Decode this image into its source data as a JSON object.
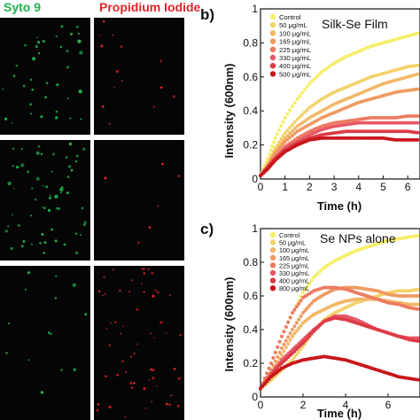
{
  "headers": {
    "syto": "Syto 9",
    "pi": "Propidium Iodide"
  },
  "colors": {
    "syto": "#22b14c",
    "pi": "#e0262a",
    "microscopy_bg": "#050505",
    "series": [
      "#f5ef6a",
      "#f3d36a",
      "#f2b867",
      "#ef9b62",
      "#ec7b62",
      "#e65866",
      "#dd3a46",
      "#c8161a"
    ]
  },
  "panels": {
    "micro": [
      {
        "row": 1,
        "green_level": "medium",
        "red_level": "low"
      },
      {
        "row": 2,
        "green_level": "high",
        "red_level": "very-low"
      },
      {
        "row": 3,
        "green_level": "low",
        "red_level": "high"
      }
    ]
  },
  "chart_data": [
    {
      "type": "scatter",
      "panel_label": "b)",
      "title": "Silk-Se Film",
      "xlabel": "Time (h)",
      "ylabel": "Intensity (600nm)",
      "xlim": [
        0,
        6.5
      ],
      "ylim": [
        0,
        1
      ],
      "xticks": [
        "0",
        "2",
        "4",
        "6"
      ],
      "xticks_minor": [
        "1",
        "3",
        "5"
      ],
      "yticks": [
        "0",
        "0.2",
        "0.4",
        "0.6",
        "0.8",
        "1"
      ],
      "legend_position": "top-left",
      "series": [
        {
          "name": "Control",
          "x": [
            0,
            0.3,
            0.6,
            1,
            1.5,
            2,
            2.5,
            3,
            3.5,
            4,
            4.5,
            5,
            5.5,
            6,
            6.5
          ],
          "y": [
            0.02,
            0.12,
            0.24,
            0.36,
            0.47,
            0.56,
            0.63,
            0.68,
            0.72,
            0.75,
            0.78,
            0.8,
            0.82,
            0.84,
            0.86
          ]
        },
        {
          "name": "50 μg/mL",
          "x": [
            0,
            0.3,
            0.6,
            1,
            1.5,
            2,
            2.5,
            3,
            3.5,
            4,
            4.5,
            5,
            5.5,
            6,
            6.5
          ],
          "y": [
            0.02,
            0.09,
            0.18,
            0.27,
            0.35,
            0.42,
            0.47,
            0.51,
            0.54,
            0.57,
            0.6,
            0.62,
            0.64,
            0.66,
            0.67
          ]
        },
        {
          "name": "100 μg/mL",
          "x": [
            0,
            0.3,
            0.6,
            1,
            1.5,
            2,
            2.5,
            3,
            3.5,
            4,
            4.5,
            5,
            5.5,
            6,
            6.5
          ],
          "y": [
            0.02,
            0.08,
            0.16,
            0.24,
            0.31,
            0.36,
            0.4,
            0.44,
            0.47,
            0.5,
            0.53,
            0.56,
            0.58,
            0.6,
            0.62
          ]
        },
        {
          "name": "165 μg/mL",
          "x": [
            0,
            0.3,
            0.6,
            1,
            1.5,
            2,
            2.5,
            3,
            3.5,
            4,
            4.5,
            5,
            5.5,
            6,
            6.5
          ],
          "y": [
            0.02,
            0.08,
            0.15,
            0.22,
            0.28,
            0.32,
            0.36,
            0.39,
            0.42,
            0.45,
            0.47,
            0.49,
            0.51,
            0.52,
            0.53
          ]
        },
        {
          "name": "225 μg/mL",
          "x": [
            0,
            0.3,
            0.6,
            1,
            1.5,
            2,
            2.5,
            3,
            3.5,
            4,
            4.5,
            5,
            5.5,
            6,
            6.5
          ],
          "y": [
            0.02,
            0.07,
            0.13,
            0.19,
            0.24,
            0.28,
            0.31,
            0.33,
            0.34,
            0.35,
            0.36,
            0.36,
            0.36,
            0.37,
            0.37
          ]
        },
        {
          "name": "330 μg/mL",
          "x": [
            0,
            0.3,
            0.6,
            1,
            1.5,
            2,
            2.5,
            3,
            3.5,
            4,
            4.5,
            5,
            5.5,
            6,
            6.5
          ],
          "y": [
            0.02,
            0.07,
            0.12,
            0.18,
            0.22,
            0.26,
            0.29,
            0.31,
            0.32,
            0.33,
            0.33,
            0.33,
            0.33,
            0.33,
            0.33
          ]
        },
        {
          "name": "400 μg/mL",
          "x": [
            0,
            0.3,
            0.6,
            1,
            1.5,
            2,
            2.5,
            3,
            3.5,
            4,
            4.5,
            5,
            5.5,
            6,
            6.5
          ],
          "y": [
            0.02,
            0.07,
            0.12,
            0.17,
            0.21,
            0.24,
            0.26,
            0.27,
            0.28,
            0.28,
            0.28,
            0.28,
            0.28,
            0.28,
            0.27
          ]
        },
        {
          "name": "500 μg/mL",
          "x": [
            0,
            0.3,
            0.6,
            1,
            1.5,
            2,
            2.5,
            3,
            3.5,
            4,
            4.5,
            5,
            5.5,
            6,
            6.5
          ],
          "y": [
            0.02,
            0.06,
            0.11,
            0.16,
            0.2,
            0.23,
            0.24,
            0.24,
            0.24,
            0.24,
            0.24,
            0.24,
            0.23,
            0.23,
            0.23
          ]
        }
      ]
    },
    {
      "type": "scatter",
      "panel_label": "c)",
      "title": "Se NPs alone",
      "xlabel": "Time (h)",
      "ylabel": "Intensity (600nm)",
      "xlim": [
        0,
        7.5
      ],
      "ylim": [
        0,
        1
      ],
      "xticks": [
        "0",
        "2",
        "4",
        "6"
      ],
      "yticks": [
        "0",
        "0.2",
        "0.4",
        "0.6",
        "0.8",
        "1"
      ],
      "legend_position": "top-left",
      "series": [
        {
          "name": "Control",
          "x": [
            0,
            0.5,
            1,
            1.5,
            2,
            2.5,
            3,
            3.5,
            4,
            4.5,
            5,
            5.5,
            6,
            6.5,
            7,
            7.5
          ],
          "y": [
            0.05,
            0.2,
            0.36,
            0.5,
            0.62,
            0.71,
            0.77,
            0.81,
            0.84,
            0.87,
            0.89,
            0.91,
            0.93,
            0.94,
            0.95,
            0.96
          ]
        },
        {
          "name": "50 μg/mL",
          "x": [
            0,
            0.5,
            1,
            1.5,
            2,
            2.5,
            3,
            3.5,
            4,
            4.5,
            5,
            5.5,
            6,
            6.5,
            7,
            7.5
          ],
          "y": [
            0.05,
            0.1,
            0.16,
            0.22,
            0.3,
            0.39,
            0.46,
            0.5,
            0.53,
            0.56,
            0.58,
            0.6,
            0.62,
            0.63,
            0.63,
            0.64
          ]
        },
        {
          "name": "100 μg/mL",
          "x": [
            0,
            0.5,
            1,
            1.5,
            2,
            2.5,
            3,
            3.5,
            4,
            4.5,
            5,
            5.5,
            6,
            6.5,
            7,
            7.5
          ],
          "y": [
            0.05,
            0.14,
            0.25,
            0.36,
            0.44,
            0.49,
            0.52,
            0.55,
            0.57,
            0.58,
            0.58,
            0.58,
            0.57,
            0.56,
            0.55,
            0.55
          ]
        },
        {
          "name": "165 μg/mL",
          "x": [
            0,
            0.5,
            1,
            1.5,
            2,
            2.5,
            3,
            3.5,
            4,
            4.5,
            5,
            5.5,
            6,
            6.5,
            7,
            7.5
          ],
          "y": [
            0.05,
            0.16,
            0.29,
            0.4,
            0.5,
            0.57,
            0.61,
            0.64,
            0.65,
            0.65,
            0.64,
            0.63,
            0.61,
            0.6,
            0.6,
            0.6
          ]
        },
        {
          "name": "225 μg/mL",
          "x": [
            0,
            0.5,
            1,
            1.5,
            2,
            2.5,
            3,
            3.5,
            4,
            4.5,
            5,
            5.5,
            6,
            6.5,
            7,
            7.5
          ],
          "y": [
            0.05,
            0.2,
            0.36,
            0.5,
            0.59,
            0.63,
            0.65,
            0.65,
            0.64,
            0.62,
            0.6,
            0.58,
            0.56,
            0.55,
            0.53,
            0.52
          ]
        },
        {
          "name": "330 μg/mL",
          "x": [
            0,
            0.5,
            1,
            1.5,
            2,
            2.5,
            3,
            3.5,
            4,
            4.5,
            5,
            5.5,
            6,
            6.5,
            7,
            7.5
          ],
          "y": [
            0.05,
            0.14,
            0.22,
            0.28,
            0.34,
            0.4,
            0.45,
            0.48,
            0.48,
            0.46,
            0.43,
            0.4,
            0.38,
            0.36,
            0.35,
            0.35
          ]
        },
        {
          "name": "400 μg/mL",
          "x": [
            0,
            0.5,
            1,
            1.5,
            2,
            2.5,
            3,
            3.5,
            4,
            4.5,
            5,
            5.5,
            6,
            6.5,
            7,
            7.5
          ],
          "y": [
            0.05,
            0.13,
            0.2,
            0.26,
            0.32,
            0.39,
            0.45,
            0.47,
            0.46,
            0.44,
            0.42,
            0.4,
            0.38,
            0.36,
            0.34,
            0.33
          ]
        },
        {
          "name": "800 μg/mL",
          "x": [
            0,
            0.5,
            1,
            1.5,
            2,
            2.5,
            3,
            3.5,
            4,
            4.5,
            5,
            5.5,
            6,
            6.5,
            7,
            7.5
          ],
          "y": [
            0.05,
            0.12,
            0.17,
            0.2,
            0.22,
            0.23,
            0.24,
            0.23,
            0.22,
            0.2,
            0.18,
            0.16,
            0.14,
            0.12,
            0.11,
            0.1
          ]
        }
      ]
    }
  ]
}
